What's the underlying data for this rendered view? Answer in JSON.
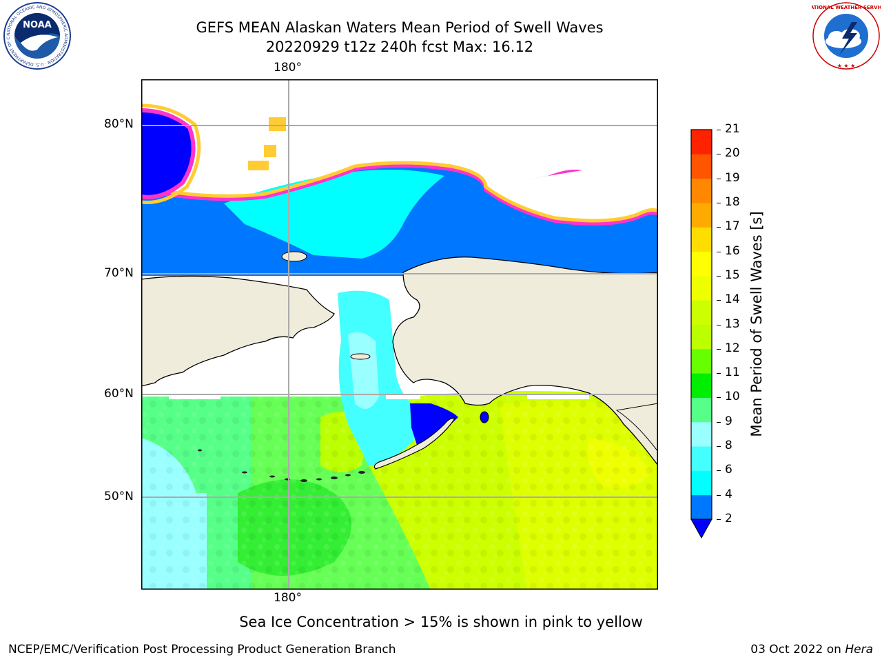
{
  "header": {
    "title_line1": "GEFS MEAN Alaskan Waters Mean Period of Swell Waves",
    "title_line2": "20220929 t12z 240h fcst   Max: 16.12"
  },
  "logos": {
    "left_ring_text": "NATIONAL OCEANIC AND ATMOSPHERIC ADMINISTRATION · U.S. DEPARTMENT OF COMMERCE",
    "left_center_text": "NOAA",
    "right_ring_text": "NATIONAL WEATHER SERVICE"
  },
  "map": {
    "lon_label_top": "180°",
    "lon_label_bottom": "180°",
    "lat_labels": [
      "80°N",
      "70°N",
      "60°N",
      "50°N"
    ],
    "colors": {
      "ocean_land": "#efecdc",
      "ice_band": [
        "#ff33cc",
        "#ff99ee",
        "#ffe066",
        "#ffcc33"
      ]
    }
  },
  "colorbar": {
    "label": "Mean Period of Swell Waves [s]",
    "ticks": [
      "2",
      "4",
      "6",
      "8",
      "9",
      "10",
      "11",
      "12",
      "13",
      "14",
      "15",
      "16",
      "17",
      "18",
      "19",
      "20",
      "21"
    ],
    "colors": [
      "#0077ff",
      "#00ffff",
      "#44ffff",
      "#99ffff",
      "#55ff88",
      "#00ee00",
      "#66ff00",
      "#bbff00",
      "#ccff00",
      "#eeff00",
      "#ffff00",
      "#ffdd00",
      "#ffaa00",
      "#ff8800",
      "#ff5500",
      "#ff2200"
    ],
    "under_color": "#0000ff"
  },
  "note": "Sea Ice Concentration > 15% is shown in pink to yellow",
  "footer": {
    "left": "NCEP/EMC/Verification Post Processing Product Generation Branch",
    "right_date": "03 Oct 2022 on ",
    "right_host": "Hera"
  }
}
